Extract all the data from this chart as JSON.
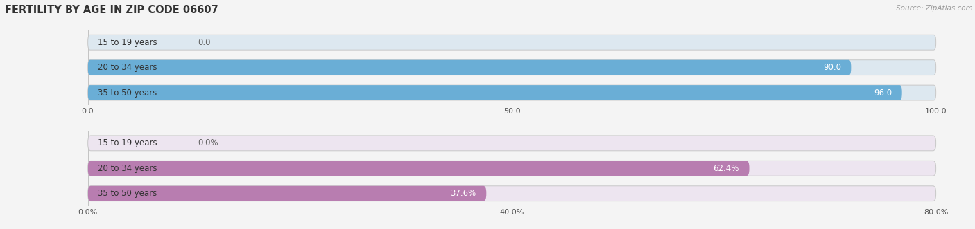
{
  "title": "FERTILITY BY AGE IN ZIP CODE 06607",
  "source": "Source: ZipAtlas.com",
  "top_chart": {
    "categories": [
      "15 to 19 years",
      "20 to 34 years",
      "35 to 50 years"
    ],
    "values": [
      0.0,
      90.0,
      96.0
    ],
    "xlim": [
      0,
      100
    ],
    "xticks": [
      0.0,
      50.0,
      100.0
    ],
    "xtick_labels": [
      "0.0",
      "50.0",
      "100.0"
    ],
    "bar_color": "#6aaed6",
    "bar_bg_color": "#dde8f0",
    "label_color": "#ffffff",
    "label_color_zero": "#666666",
    "bar_height": 0.6
  },
  "bottom_chart": {
    "categories": [
      "15 to 19 years",
      "20 to 34 years",
      "35 to 50 years"
    ],
    "values": [
      0.0,
      62.4,
      37.6
    ],
    "xlim": [
      0,
      80
    ],
    "xticks": [
      0.0,
      40.0,
      80.0
    ],
    "xtick_labels": [
      "0.0%",
      "40.0%",
      "80.0%"
    ],
    "bar_color": "#b87db0",
    "bar_bg_color": "#ede5f0",
    "label_color": "#ffffff",
    "label_color_zero": "#666666",
    "bar_height": 0.6
  },
  "label_fontsize": 8.5,
  "category_fontsize": 8.5,
  "tick_fontsize": 8,
  "title_fontsize": 10.5,
  "source_fontsize": 7.5,
  "fig_bg_color": "#f4f4f4"
}
